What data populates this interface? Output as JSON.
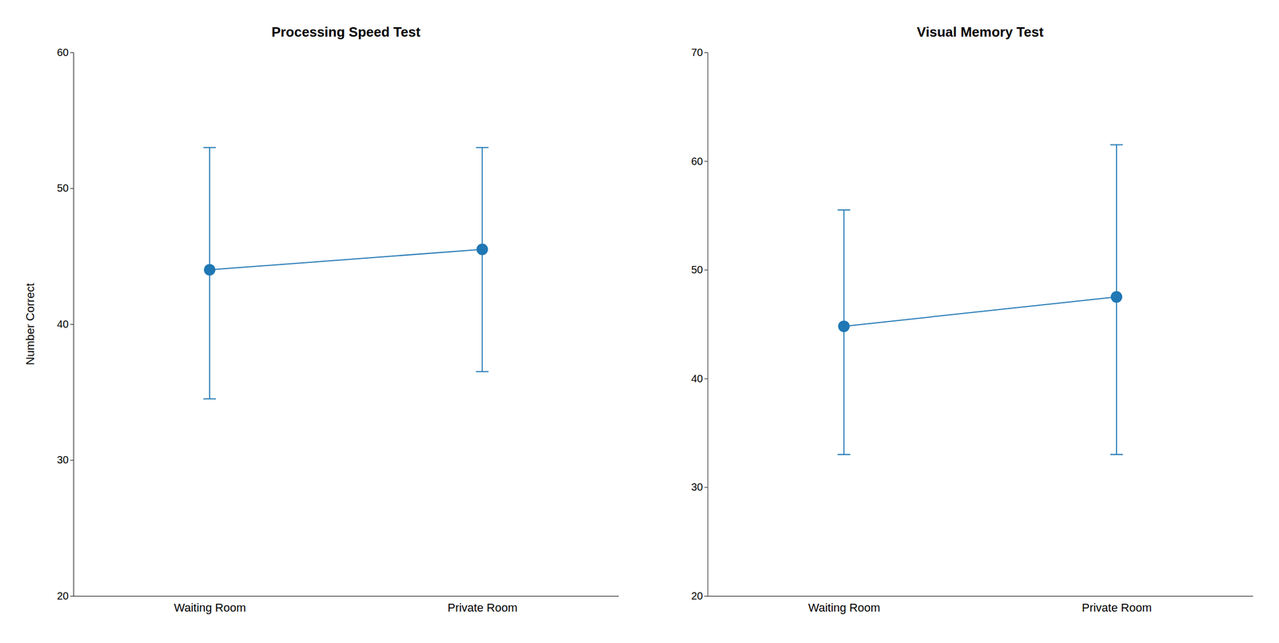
{
  "chart_data": [
    {
      "type": "line",
      "title": "Processing Speed Test",
      "ylabel": "Number Correct",
      "categories": [
        "Waiting Room",
        "Private Room"
      ],
      "values": [
        44.0,
        45.5
      ],
      "errors_upper": [
        9.0,
        7.5
      ],
      "errors_lower": [
        9.5,
        9.0
      ],
      "ylim": [
        20,
        60
      ],
      "yticks": [
        20,
        30,
        40,
        50,
        60
      ],
      "marker": "circle",
      "grid": false
    },
    {
      "type": "line",
      "title": "Visual Memory Test",
      "categories": [
        "Waiting Room",
        "Private Room"
      ],
      "values": [
        44.8,
        47.5
      ],
      "errors_upper": [
        10.7,
        14.0
      ],
      "errors_lower": [
        11.8,
        14.5
      ],
      "ylim": [
        20,
        70
      ],
      "yticks": [
        20,
        30,
        40,
        50,
        60,
        70
      ],
      "marker": "circle",
      "grid": false
    }
  ]
}
